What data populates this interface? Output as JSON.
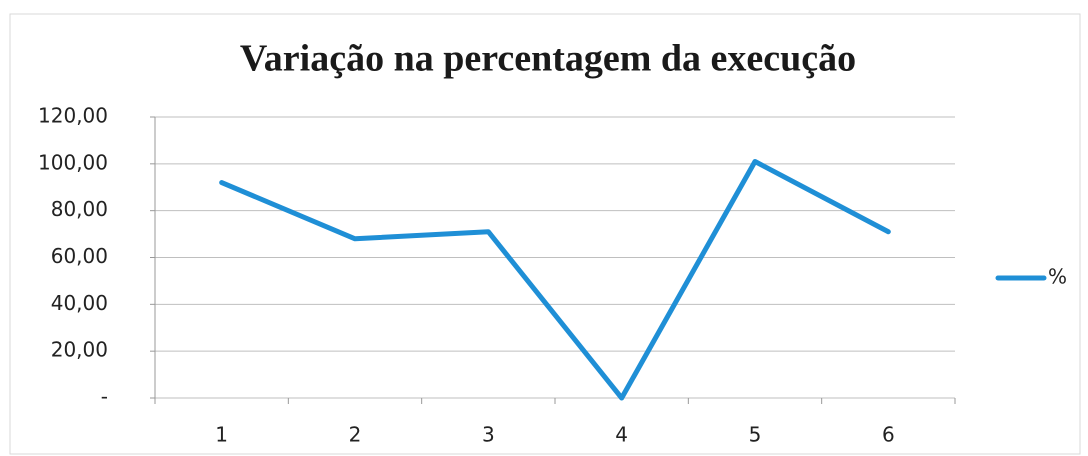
{
  "chart_data": {
    "type": "line",
    "title": "Variação na percentagem da execução",
    "categories": [
      "1",
      "2",
      "3",
      "4",
      "5",
      "6"
    ],
    "series": [
      {
        "name": "%",
        "color": "#1f8fd6",
        "values": [
          92,
          68,
          71,
          0,
          101,
          71
        ]
      }
    ],
    "ylim": [
      0,
      120
    ],
    "yticks": [
      {
        "value": 0,
        "label": "-"
      },
      {
        "value": 20,
        "label": "20,00"
      },
      {
        "value": 40,
        "label": "40,00"
      },
      {
        "value": 60,
        "label": "60,00"
      },
      {
        "value": 80,
        "label": "80,00"
      },
      {
        "value": 100,
        "label": "100,00"
      },
      {
        "value": 120,
        "label": "120,00"
      }
    ],
    "grid": true,
    "legend": "right"
  }
}
